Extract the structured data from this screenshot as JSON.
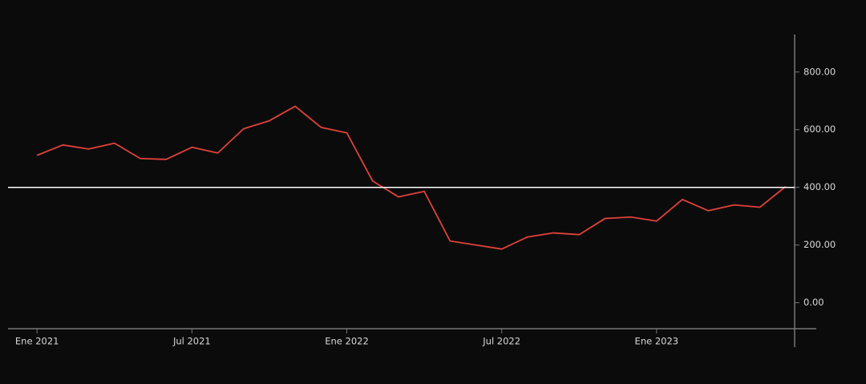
{
  "chart_data": {
    "type": "line",
    "x": [
      "2021-01",
      "2021-02",
      "2021-03",
      "2021-04",
      "2021-05",
      "2021-06",
      "2021-07",
      "2021-08",
      "2021-09",
      "2021-10",
      "2021-11",
      "2021-12",
      "2022-01",
      "2022-02",
      "2022-03",
      "2022-04",
      "2022-05",
      "2022-06",
      "2022-07",
      "2022-08",
      "2022-09",
      "2022-10",
      "2022-11",
      "2022-12",
      "2023-01",
      "2023-02",
      "2023-03",
      "2023-04",
      "2023-05",
      "2023-06"
    ],
    "series": [
      {
        "color": "#e0413a",
        "values": [
          511,
          547,
          533,
          553,
          500,
          497,
          539,
          519,
          603,
          631,
          681,
          608,
          589,
          422,
          367,
          386,
          214,
          200,
          186,
          228,
          242,
          236,
          292,
          297,
          283,
          358,
          319,
          339,
          331,
          403
        ]
      }
    ],
    "xlim": [
      "2020-12",
      "2023-07"
    ],
    "xticks": [
      {
        "value": "2021-01",
        "label": "Ene 2021"
      },
      {
        "value": "2021-07",
        "label": "Jul 2021"
      },
      {
        "value": "2022-01",
        "label": "Ene 2022"
      },
      {
        "value": "2022-07",
        "label": "Jul 2022"
      },
      {
        "value": "2023-01",
        "label": "Ene 2023"
      }
    ],
    "ylim": [
      -90,
      930
    ],
    "yticks": [
      {
        "value": 0,
        "label": "0.00"
      },
      {
        "value": 200,
        "label": "200.00"
      },
      {
        "value": 400,
        "label": "400.00"
      },
      {
        "value": 600,
        "label": "600.00"
      },
      {
        "value": 800,
        "label": "800.00"
      }
    ],
    "reference_line": {
      "value": 400,
      "color": "#ffffff"
    }
  }
}
